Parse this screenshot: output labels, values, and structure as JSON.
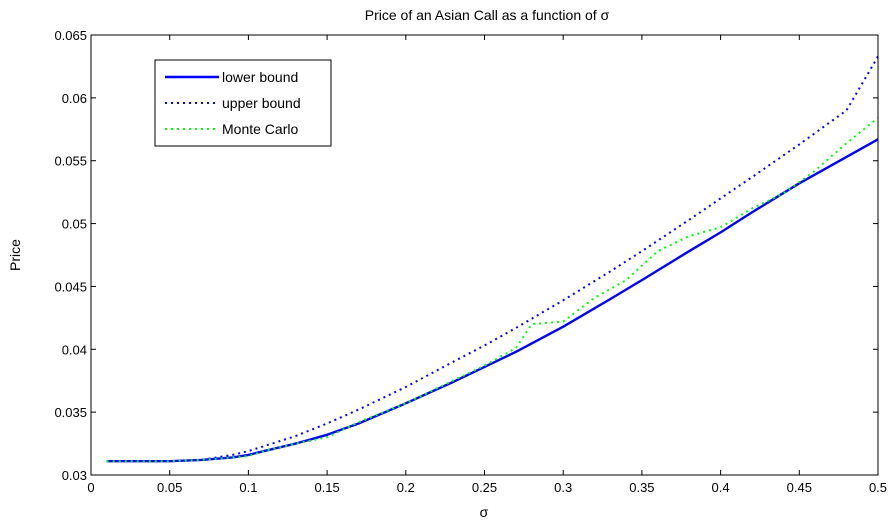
{
  "chart_data": {
    "type": "line",
    "title": "Price of an Asian Call as a function of σ",
    "xlabel": "σ",
    "ylabel": "Price",
    "xlim": [
      0,
      0.5
    ],
    "ylim": [
      0.03,
      0.065
    ],
    "xticks": [
      0,
      0.05,
      0.1,
      0.15,
      0.2,
      0.25,
      0.3,
      0.35,
      0.4,
      0.45,
      0.5
    ],
    "xtick_labels": [
      "0",
      "0.05",
      "0.1",
      "0.15",
      "0.2",
      "0.25",
      "0.3",
      "0.35",
      "0.4",
      "0.45",
      "0.5"
    ],
    "yticks": [
      0.03,
      0.035,
      0.04,
      0.045,
      0.05,
      0.055,
      0.06,
      0.065
    ],
    "ytick_labels": [
      "0.03",
      "0.035",
      "0.04",
      "0.045",
      "0.05",
      "0.055",
      "0.06",
      "0.065"
    ],
    "grid": false,
    "legend_position": "top-left",
    "series": [
      {
        "name": "lower bound",
        "color": "#0000ff",
        "style": "solid",
        "x": [
          0.01,
          0.03,
          0.05,
          0.07,
          0.08,
          0.09,
          0.1,
          0.11,
          0.12,
          0.13,
          0.15,
          0.17,
          0.2,
          0.23,
          0.25,
          0.27,
          0.3,
          0.33,
          0.35,
          0.38,
          0.4,
          0.42,
          0.45,
          0.48,
          0.5
        ],
        "values": [
          0.0311,
          0.0311,
          0.0311,
          0.0312,
          0.0313,
          0.0314,
          0.0316,
          0.0319,
          0.0322,
          0.0325,
          0.0332,
          0.0341,
          0.0357,
          0.0374,
          0.0386,
          0.0398,
          0.0418,
          0.044,
          0.0455,
          0.0478,
          0.0493,
          0.0509,
          0.0532,
          0.0553,
          0.0567
        ]
      },
      {
        "name": "upper bound",
        "color": "#0000ff",
        "style": "dotted",
        "x": [
          0.01,
          0.03,
          0.05,
          0.07,
          0.08,
          0.09,
          0.1,
          0.11,
          0.12,
          0.13,
          0.15,
          0.17,
          0.2,
          0.23,
          0.25,
          0.27,
          0.3,
          0.33,
          0.35,
          0.38,
          0.4,
          0.42,
          0.45,
          0.48,
          0.5
        ],
        "values": [
          0.0311,
          0.0311,
          0.0311,
          0.0312,
          0.0314,
          0.0316,
          0.0319,
          0.0323,
          0.0327,
          0.0331,
          0.0341,
          0.0352,
          0.037,
          0.039,
          0.0403,
          0.0417,
          0.0439,
          0.0462,
          0.0478,
          0.0503,
          0.052,
          0.0537,
          0.0563,
          0.059,
          0.0633
        ]
      },
      {
        "name": "Monte Carlo",
        "color": "#00ff00",
        "style": "dotted",
        "x": [
          0.01,
          0.03,
          0.05,
          0.07,
          0.08,
          0.09,
          0.1,
          0.11,
          0.12,
          0.13,
          0.15,
          0.17,
          0.2,
          0.23,
          0.25,
          0.27,
          0.28,
          0.3,
          0.32,
          0.34,
          0.36,
          0.38,
          0.4,
          0.42,
          0.44,
          0.46,
          0.48,
          0.5
        ],
        "values": [
          0.0311,
          0.0311,
          0.0311,
          0.0312,
          0.0313,
          0.0314,
          0.0315,
          0.0319,
          0.0322,
          0.0325,
          0.033,
          0.0342,
          0.0357,
          0.0375,
          0.0387,
          0.0401,
          0.042,
          0.0422,
          0.0441,
          0.0455,
          0.0478,
          0.049,
          0.0497,
          0.0512,
          0.0524,
          0.0542,
          0.0564,
          0.0584
        ]
      }
    ]
  }
}
